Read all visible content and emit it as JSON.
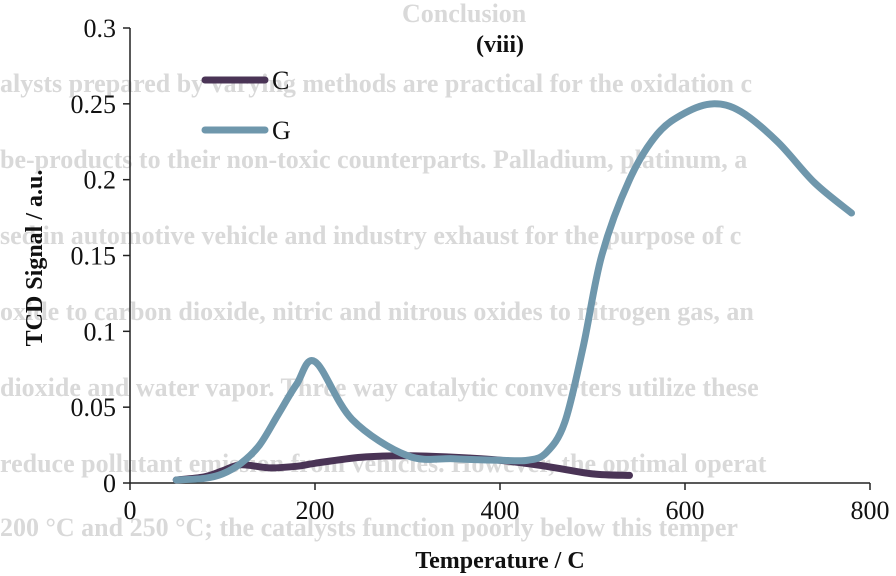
{
  "background_text": {
    "heading": "Conclusion",
    "lines": [
      "alysts prepared by varying methods are practical for the oxidation c",
      "be-products to their non-toxic counterparts.  Palladium, platinum, a",
      "sed in automotive vehicle and industry exhaust for the purpose of c",
      "oxide to carbon dioxide, nitric and nitrous oxides to nitrogen gas, an",
      "dioxide and water vapor.  Three way catalytic converters utilize these",
      "reduce pollutant emission from vehicles.  However, the optimal operat",
      "200 °C and 250 °C; the catalysts function poorly below this temper"
    ]
  },
  "chart_data": {
    "type": "line",
    "title": "(viii)",
    "xlabel": "Temperature / C",
    "ylabel": "TCD Signal / a.u.",
    "xlim": [
      0,
      800
    ],
    "ylim": [
      0,
      0.3
    ],
    "xticks": [
      0,
      200,
      400,
      600,
      800
    ],
    "xtick_labels": [
      "0",
      "200",
      "400",
      "600",
      "800"
    ],
    "yticks": [
      0,
      0.05,
      0.1,
      0.15,
      0.2,
      0.25,
      0.3
    ],
    "ytick_labels": [
      "0",
      "0.05",
      "0.1",
      "0.15",
      "0.2",
      "0.25",
      "0.3"
    ],
    "grid": false,
    "legend_position": "top-left",
    "series": [
      {
        "name": "C",
        "color": "#4a3456",
        "x": [
          50,
          80,
          100,
          120,
          150,
          180,
          200,
          250,
          300,
          350,
          400,
          450,
          500,
          540
        ],
        "y": [
          0.002,
          0.004,
          0.008,
          0.012,
          0.01,
          0.011,
          0.013,
          0.017,
          0.018,
          0.017,
          0.015,
          0.011,
          0.006,
          0.005
        ]
      },
      {
        "name": "G",
        "color": "#6f97ac",
        "x": [
          50,
          80,
          100,
          120,
          140,
          160,
          180,
          200,
          240,
          300,
          350,
          400,
          430,
          450,
          470,
          490,
          510,
          540,
          570,
          600,
          630,
          660,
          700,
          740,
          780
        ],
        "y": [
          0.002,
          0.003,
          0.006,
          0.013,
          0.025,
          0.045,
          0.065,
          0.08,
          0.042,
          0.018,
          0.016,
          0.015,
          0.015,
          0.02,
          0.04,
          0.09,
          0.15,
          0.2,
          0.23,
          0.244,
          0.25,
          0.245,
          0.225,
          0.198,
          0.178
        ]
      }
    ]
  }
}
